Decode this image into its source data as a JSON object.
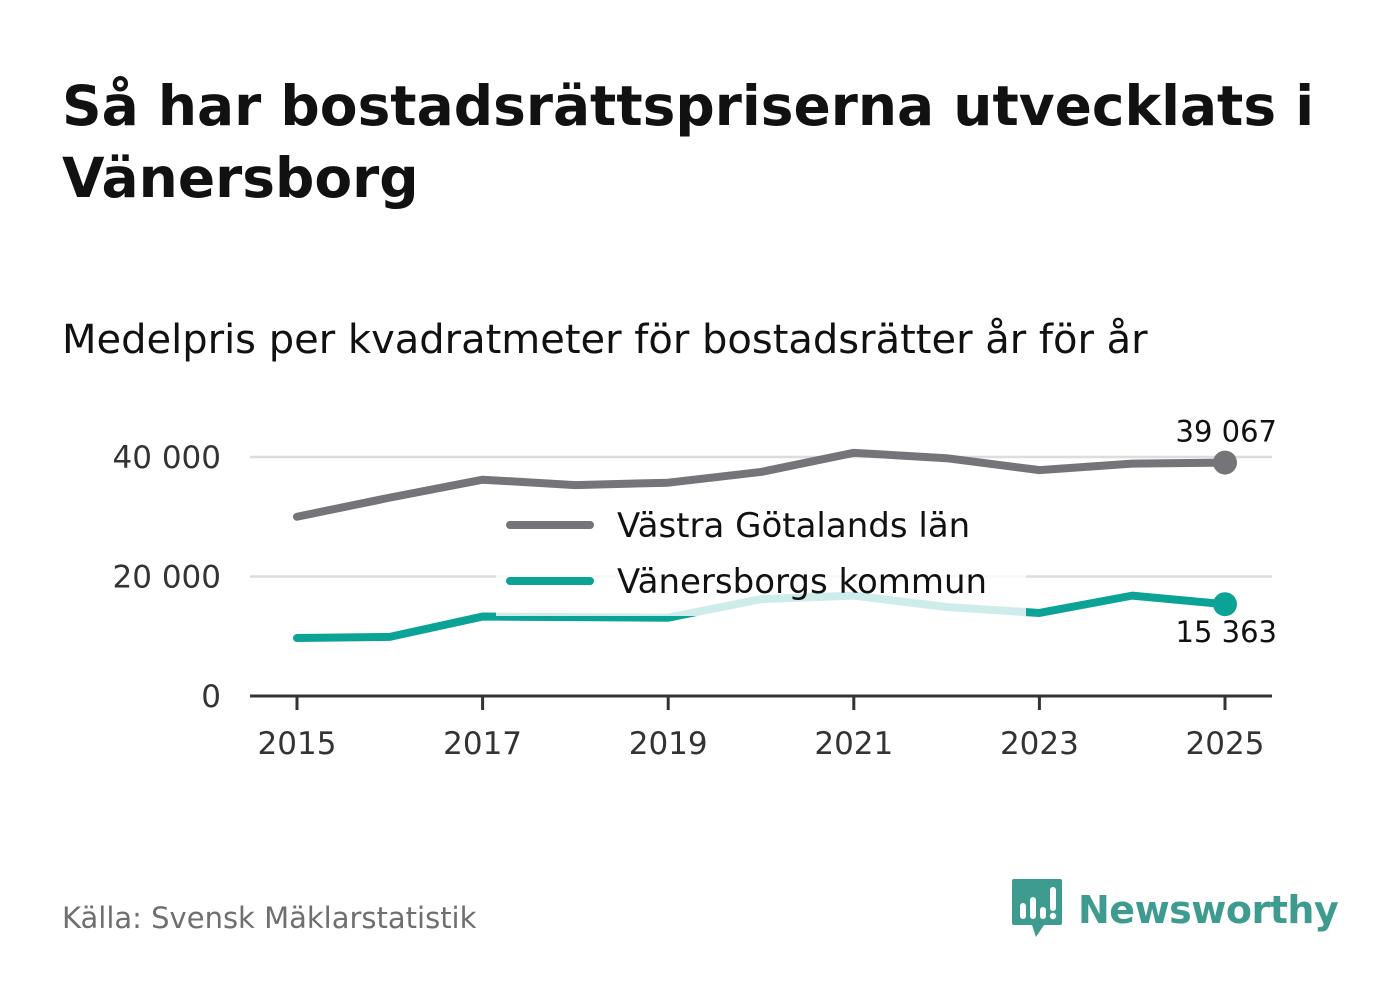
{
  "title": "Så har bostadsrättspriserna utvecklats i Vänersborg",
  "subtitle": "Medelpris per kvadratmeter för bostadsrätter år för år",
  "source": "Källa: Svensk Mäklarstatistik",
  "brand": {
    "name": "Newsworthy",
    "icon": "newsworthy-logo-icon",
    "color": "#3d9b8f"
  },
  "colors": {
    "gridline": "#dddddd",
    "axis": "#333333",
    "tick_text": "#333333"
  },
  "chart_data": {
    "type": "line",
    "x": [
      2015,
      2016,
      2017,
      2018,
      2019,
      2020,
      2021,
      2022,
      2023,
      2024,
      2025
    ],
    "xticks": [
      2015,
      2017,
      2019,
      2021,
      2023,
      2025
    ],
    "xtick_labels": [
      "2015",
      "2017",
      "2019",
      "2021",
      "2023",
      "2025"
    ],
    "xlim": [
      2015,
      2025
    ],
    "ylim": [
      0,
      40000
    ],
    "yticks": [
      0,
      20000,
      40000
    ],
    "ytick_labels": [
      "0",
      "20 000",
      "40 000"
    ],
    "grid": true,
    "legend_position": "center",
    "series": [
      {
        "name": "Västra Götalands län",
        "color": "#747479",
        "values": [
          30000,
          33200,
          36200,
          35300,
          35700,
          37500,
          40700,
          39800,
          37800,
          38900,
          39067
        ],
        "end_label": "39 067",
        "end_label_position": "above"
      },
      {
        "name": "Vänersborgs kommun",
        "color": "#0aa396",
        "values": [
          9700,
          9900,
          13300,
          13200,
          13100,
          16200,
          16800,
          14900,
          13900,
          16800,
          15363
        ],
        "end_label": "15 363",
        "end_label_position": "below"
      }
    ]
  }
}
